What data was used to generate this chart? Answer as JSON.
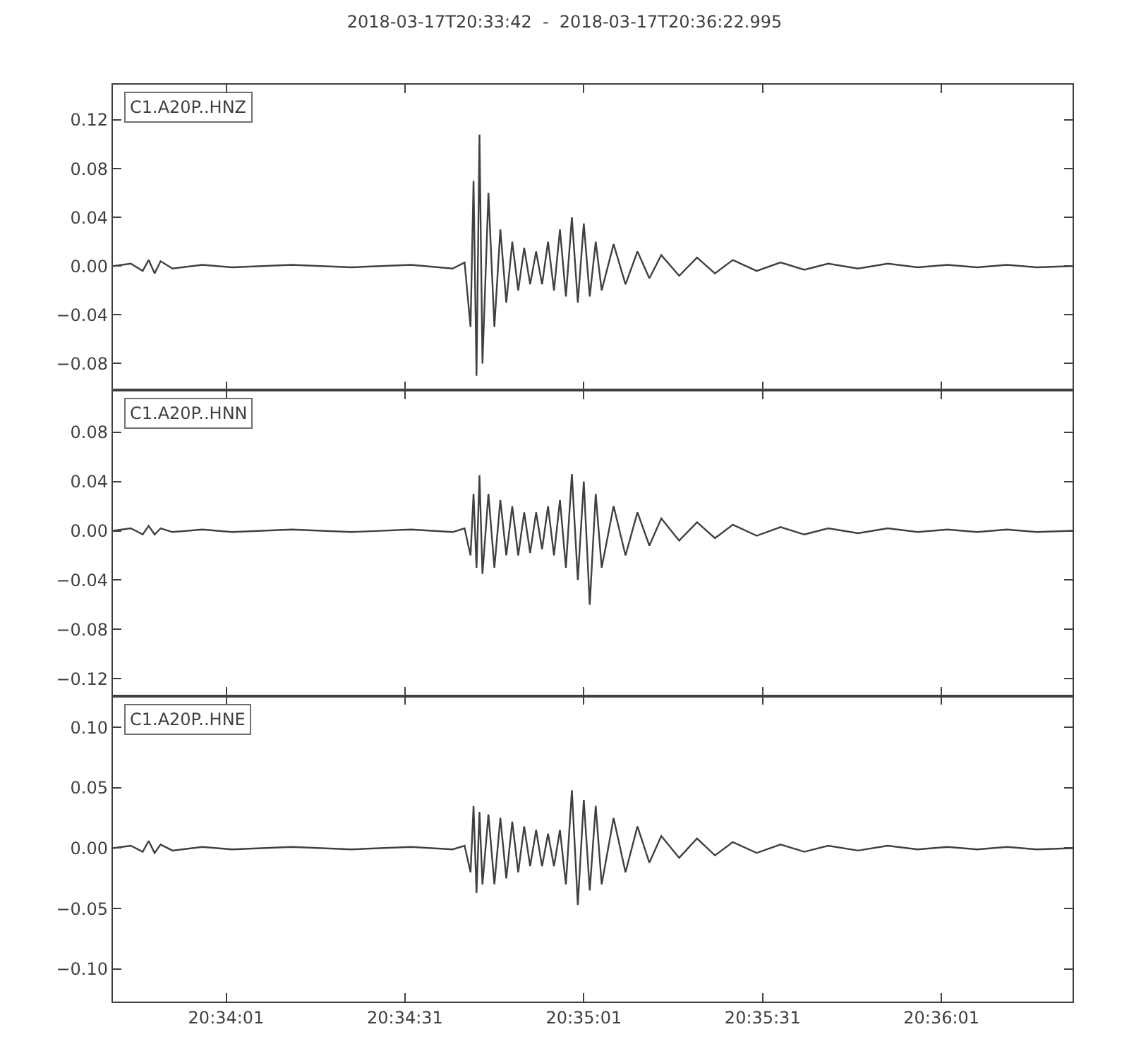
{
  "chart_data": [
    {
      "type": "line",
      "title": "2018-03-17T20:33:42  -  2018-03-17T20:36:22.995",
      "x": [
        "2018-03-17T20:33:42",
        "2018-03-17T20:33:45",
        "2018-03-17T20:33:47",
        "2018-03-17T20:33:48",
        "2018-03-17T20:33:49",
        "2018-03-17T20:33:50",
        "2018-03-17T20:33:52",
        "2018-03-17T20:33:57",
        "2018-03-17T20:34:02",
        "2018-03-17T20:34:12",
        "2018-03-17T20:34:22",
        "2018-03-17T20:34:32",
        "2018-03-17T20:34:39",
        "2018-03-17T20:34:41",
        "2018-03-17T20:34:42",
        "2018-03-17T20:34:42.5",
        "2018-03-17T20:34:43",
        "2018-03-17T20:34:43.5",
        "2018-03-17T20:34:44",
        "2018-03-17T20:34:45",
        "2018-03-17T20:34:46",
        "2018-03-17T20:34:47",
        "2018-03-17T20:34:48",
        "2018-03-17T20:34:49",
        "2018-03-17T20:34:50",
        "2018-03-17T20:34:51",
        "2018-03-17T20:34:52",
        "2018-03-17T20:34:53",
        "2018-03-17T20:34:54",
        "2018-03-17T20:34:55",
        "2018-03-17T20:34:56",
        "2018-03-17T20:34:57",
        "2018-03-17T20:34:58",
        "2018-03-17T20:34:59",
        "2018-03-17T20:35:00",
        "2018-03-17T20:35:01",
        "2018-03-17T20:35:02",
        "2018-03-17T20:35:03",
        "2018-03-17T20:35:04",
        "2018-03-17T20:35:06",
        "2018-03-17T20:35:08",
        "2018-03-17T20:35:10",
        "2018-03-17T20:35:12",
        "2018-03-17T20:35:14",
        "2018-03-17T20:35:17",
        "2018-03-17T20:35:20",
        "2018-03-17T20:35:23",
        "2018-03-17T20:35:26",
        "2018-03-17T20:35:30",
        "2018-03-17T20:35:34",
        "2018-03-17T20:35:38",
        "2018-03-17T20:35:42",
        "2018-03-17T20:35:47",
        "2018-03-17T20:35:52",
        "2018-03-17T20:35:57",
        "2018-03-17T20:36:02",
        "2018-03-17T20:36:07",
        "2018-03-17T20:36:12",
        "2018-03-17T20:36:17",
        "2018-03-17T20:36:22.995"
      ],
      "series": [
        {
          "name": "C1.A20P..HNZ",
          "color": "#404040",
          "values": [
            0,
            0.002,
            -0.004,
            0.005,
            -0.006,
            0.004,
            -0.002,
            0.001,
            -0.001,
            0.001,
            -0.001,
            0.001,
            -0.002,
            0.003,
            -0.05,
            0.07,
            -0.09,
            0.108,
            -0.08,
            0.06,
            -0.05,
            0.03,
            -0.03,
            0.02,
            -0.02,
            0.015,
            -0.015,
            0.012,
            -0.015,
            0.02,
            -0.02,
            0.03,
            -0.025,
            0.04,
            -0.03,
            0.035,
            -0.025,
            0.02,
            -0.02,
            0.018,
            -0.015,
            0.012,
            -0.01,
            0.009,
            -0.008,
            0.007,
            -0.006,
            0.005,
            -0.004,
            0.003,
            -0.003,
            0.002,
            -0.002,
            0.002,
            -0.001,
            0.001,
            -0.001,
            0.001,
            -0.001,
            0
          ]
        }
      ],
      "xlim": [
        "2018-03-17T20:33:42",
        "2018-03-17T20:36:22.995"
      ],
      "xticks": [
        {
          "value": "2018-03-17T20:34:01",
          "label": null
        },
        {
          "value": "2018-03-17T20:34:31",
          "label": null
        },
        {
          "value": "2018-03-17T20:35:01",
          "label": null
        },
        {
          "value": "2018-03-17T20:35:31",
          "label": null
        },
        {
          "value": "2018-03-17T20:36:01",
          "label": null
        }
      ],
      "ylim": [
        -0.102,
        0.149
      ],
      "yticks": [
        {
          "value": -0.08,
          "label": "−0.08"
        },
        {
          "value": -0.04,
          "label": "−0.04"
        },
        {
          "value": 0,
          "label": "0.00"
        },
        {
          "value": 0.04,
          "label": "0.04"
        },
        {
          "value": 0.08,
          "label": "0.08"
        },
        {
          "value": 0.12,
          "label": "0.12"
        }
      ],
      "tick_labels": "y",
      "grid": false,
      "legend": "top left"
    },
    {
      "type": "line",
      "x": [
        "2018-03-17T20:33:42",
        "2018-03-17T20:33:45",
        "2018-03-17T20:33:47",
        "2018-03-17T20:33:48",
        "2018-03-17T20:33:49",
        "2018-03-17T20:33:50",
        "2018-03-17T20:33:52",
        "2018-03-17T20:33:57",
        "2018-03-17T20:34:02",
        "2018-03-17T20:34:12",
        "2018-03-17T20:34:22",
        "2018-03-17T20:34:32",
        "2018-03-17T20:34:39",
        "2018-03-17T20:34:41",
        "2018-03-17T20:34:42",
        "2018-03-17T20:34:42.5",
        "2018-03-17T20:34:43",
        "2018-03-17T20:34:43.5",
        "2018-03-17T20:34:44",
        "2018-03-17T20:34:45",
        "2018-03-17T20:34:46",
        "2018-03-17T20:34:47",
        "2018-03-17T20:34:48",
        "2018-03-17T20:34:49",
        "2018-03-17T20:34:50",
        "2018-03-17T20:34:51",
        "2018-03-17T20:34:52",
        "2018-03-17T20:34:53",
        "2018-03-17T20:34:54",
        "2018-03-17T20:34:55",
        "2018-03-17T20:34:56",
        "2018-03-17T20:34:57",
        "2018-03-17T20:34:58",
        "2018-03-17T20:34:59",
        "2018-03-17T20:35:00",
        "2018-03-17T20:35:01",
        "2018-03-17T20:35:02",
        "2018-03-17T20:35:03",
        "2018-03-17T20:35:04",
        "2018-03-17T20:35:06",
        "2018-03-17T20:35:08",
        "2018-03-17T20:35:10",
        "2018-03-17T20:35:12",
        "2018-03-17T20:35:14",
        "2018-03-17T20:35:17",
        "2018-03-17T20:35:20",
        "2018-03-17T20:35:23",
        "2018-03-17T20:35:26",
        "2018-03-17T20:35:30",
        "2018-03-17T20:35:34",
        "2018-03-17T20:35:38",
        "2018-03-17T20:35:42",
        "2018-03-17T20:35:47",
        "2018-03-17T20:35:52",
        "2018-03-17T20:35:57",
        "2018-03-17T20:36:02",
        "2018-03-17T20:36:07",
        "2018-03-17T20:36:12",
        "2018-03-17T20:36:17",
        "2018-03-17T20:36:22.995"
      ],
      "series": [
        {
          "name": "C1.A20P..HNN",
          "color": "#404040",
          "values": [
            0,
            0.002,
            -0.003,
            0.004,
            -0.003,
            0.002,
            -0.001,
            0.001,
            -0.001,
            0.001,
            -0.001,
            0.001,
            -0.001,
            0.002,
            -0.02,
            0.03,
            -0.03,
            0.045,
            -0.035,
            0.03,
            -0.03,
            0.025,
            -0.02,
            0.02,
            -0.02,
            0.015,
            -0.018,
            0.015,
            -0.015,
            0.02,
            -0.02,
            0.025,
            -0.03,
            0.046,
            -0.04,
            0.04,
            -0.06,
            0.03,
            -0.03,
            0.02,
            -0.02,
            0.015,
            -0.012,
            0.01,
            -0.008,
            0.007,
            -0.006,
            0.005,
            -0.004,
            0.003,
            -0.003,
            0.002,
            -0.002,
            0.002,
            -0.001,
            0.001,
            -0.001,
            0.001,
            -0.001,
            0
          ]
        }
      ],
      "xlim": [
        "2018-03-17T20:33:42",
        "2018-03-17T20:36:22.995"
      ],
      "xticks": [
        {
          "value": "2018-03-17T20:34:01",
          "label": null
        },
        {
          "value": "2018-03-17T20:34:31",
          "label": null
        },
        {
          "value": "2018-03-17T20:35:01",
          "label": null
        },
        {
          "value": "2018-03-17T20:35:31",
          "label": null
        },
        {
          "value": "2018-03-17T20:36:01",
          "label": null
        }
      ],
      "ylim": [
        -0.134,
        0.114
      ],
      "yticks": [
        {
          "value": -0.12,
          "label": "−0.12"
        },
        {
          "value": -0.08,
          "label": "−0.08"
        },
        {
          "value": -0.04,
          "label": "−0.04"
        },
        {
          "value": 0,
          "label": "0.00"
        },
        {
          "value": 0.04,
          "label": "0.04"
        },
        {
          "value": 0.08,
          "label": "0.08"
        }
      ],
      "tick_labels": "y",
      "grid": false,
      "legend": "top left"
    },
    {
      "type": "line",
      "x": [
        "2018-03-17T20:33:42",
        "2018-03-17T20:33:45",
        "2018-03-17T20:33:47",
        "2018-03-17T20:33:48",
        "2018-03-17T20:33:49",
        "2018-03-17T20:33:50",
        "2018-03-17T20:33:52",
        "2018-03-17T20:33:57",
        "2018-03-17T20:34:02",
        "2018-03-17T20:34:12",
        "2018-03-17T20:34:22",
        "2018-03-17T20:34:32",
        "2018-03-17T20:34:39",
        "2018-03-17T20:34:41",
        "2018-03-17T20:34:42",
        "2018-03-17T20:34:42.5",
        "2018-03-17T20:34:43",
        "2018-03-17T20:34:43.5",
        "2018-03-17T20:34:44",
        "2018-03-17T20:34:45",
        "2018-03-17T20:34:46",
        "2018-03-17T20:34:47",
        "2018-03-17T20:34:48",
        "2018-03-17T20:34:49",
        "2018-03-17T20:34:50",
        "2018-03-17T20:34:51",
        "2018-03-17T20:34:52",
        "2018-03-17T20:34:53",
        "2018-03-17T20:34:54",
        "2018-03-17T20:34:55",
        "2018-03-17T20:34:56",
        "2018-03-17T20:34:57",
        "2018-03-17T20:34:58",
        "2018-03-17T20:34:59",
        "2018-03-17T20:35:00",
        "2018-03-17T20:35:01",
        "2018-03-17T20:35:02",
        "2018-03-17T20:35:03",
        "2018-03-17T20:35:04",
        "2018-03-17T20:35:06",
        "2018-03-17T20:35:08",
        "2018-03-17T20:35:10",
        "2018-03-17T20:35:12",
        "2018-03-17T20:35:14",
        "2018-03-17T20:35:17",
        "2018-03-17T20:35:20",
        "2018-03-17T20:35:23",
        "2018-03-17T20:35:26",
        "2018-03-17T20:35:30",
        "2018-03-17T20:35:34",
        "2018-03-17T20:35:38",
        "2018-03-17T20:35:42",
        "2018-03-17T20:35:47",
        "2018-03-17T20:35:52",
        "2018-03-17T20:35:57",
        "2018-03-17T20:36:02",
        "2018-03-17T20:36:07",
        "2018-03-17T20:36:12",
        "2018-03-17T20:36:17",
        "2018-03-17T20:36:22.995"
      ],
      "series": [
        {
          "name": "C1.A20P..HNE",
          "color": "#404040",
          "values": [
            0,
            0.002,
            -0.003,
            0.006,
            -0.004,
            0.003,
            -0.002,
            0.001,
            -0.001,
            0.001,
            -0.001,
            0.001,
            -0.001,
            0.002,
            -0.02,
            0.035,
            -0.037,
            0.03,
            -0.03,
            0.028,
            -0.03,
            0.025,
            -0.025,
            0.022,
            -0.02,
            0.018,
            -0.015,
            0.015,
            -0.015,
            0.012,
            -0.015,
            0.015,
            -0.03,
            0.048,
            -0.047,
            0.04,
            -0.035,
            0.035,
            -0.03,
            0.025,
            -0.02,
            0.018,
            -0.012,
            0.01,
            -0.008,
            0.008,
            -0.006,
            0.005,
            -0.004,
            0.003,
            -0.003,
            0.002,
            -0.002,
            0.002,
            -0.001,
            0.001,
            -0.001,
            0.001,
            -0.001,
            0
          ]
        }
      ],
      "xlim": [
        "2018-03-17T20:33:42",
        "2018-03-17T20:36:22.995"
      ],
      "xticks": [
        {
          "value": "2018-03-17T20:34:01",
          "label": "20:34:01"
        },
        {
          "value": "2018-03-17T20:34:31",
          "label": "20:34:31"
        },
        {
          "value": "2018-03-17T20:35:01",
          "label": "20:35:01"
        },
        {
          "value": "2018-03-17T20:35:31",
          "label": "20:35:31"
        },
        {
          "value": "2018-03-17T20:36:01",
          "label": "20:36:01"
        }
      ],
      "ylim": [
        -0.127,
        0.126
      ],
      "yticks": [
        {
          "value": -0.1,
          "label": "−0.10"
        },
        {
          "value": -0.05,
          "label": "−0.05"
        },
        {
          "value": 0,
          "label": "0.00"
        },
        {
          "value": 0.05,
          "label": "0.05"
        },
        {
          "value": 0.1,
          "label": "0.10"
        }
      ],
      "grid": false,
      "legend": "top left"
    }
  ]
}
